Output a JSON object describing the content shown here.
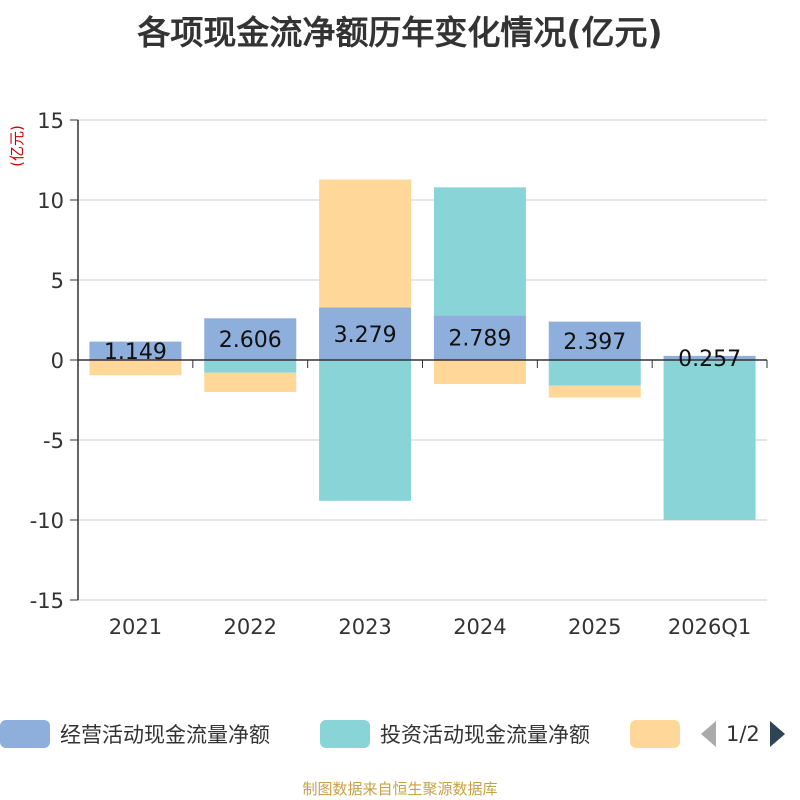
{
  "title": "各项现金流净额历年变化情况(亿元)",
  "source": "制图数据来自恒生聚源数据库",
  "legend": {
    "items": [
      {
        "label": "经营活动现金流量净额",
        "color": "#8eaedb"
      },
      {
        "label": "投资活动现金流量净额",
        "color": "#88d4d7"
      },
      {
        "label": "",
        "color": "#ffd899"
      }
    ],
    "pager": "1/2"
  },
  "chart_data": {
    "type": "bar",
    "stacked": true,
    "unit_label": "(亿元)",
    "categories": [
      "2021",
      "2022",
      "2023",
      "2024",
      "2025",
      "2026Q1"
    ],
    "ylim": [
      -15,
      15
    ],
    "yticks": [
      15,
      10,
      5,
      0,
      -5,
      -10,
      -15
    ],
    "grid": true,
    "legend_position": "bottom",
    "series": [
      {
        "name": "经营活动现金流量净额",
        "color": "#8eaedb",
        "values": [
          1.149,
          2.606,
          3.279,
          2.789,
          2.397,
          0.257
        ],
        "labels": [
          "1.149",
          "2.606",
          "3.279",
          "2.789",
          "2.397",
          "0.257"
        ]
      },
      {
        "name": "投资活动现金流量净额",
        "color": "#88d4d7",
        "values": [
          0,
          -0.8,
          -8.8,
          8.0,
          -1.6,
          -10.0
        ]
      },
      {
        "color": "#ffd899",
        "values": [
          -0.95,
          -1.2,
          8.0,
          -1.5,
          -0.75,
          0
        ]
      }
    ]
  }
}
